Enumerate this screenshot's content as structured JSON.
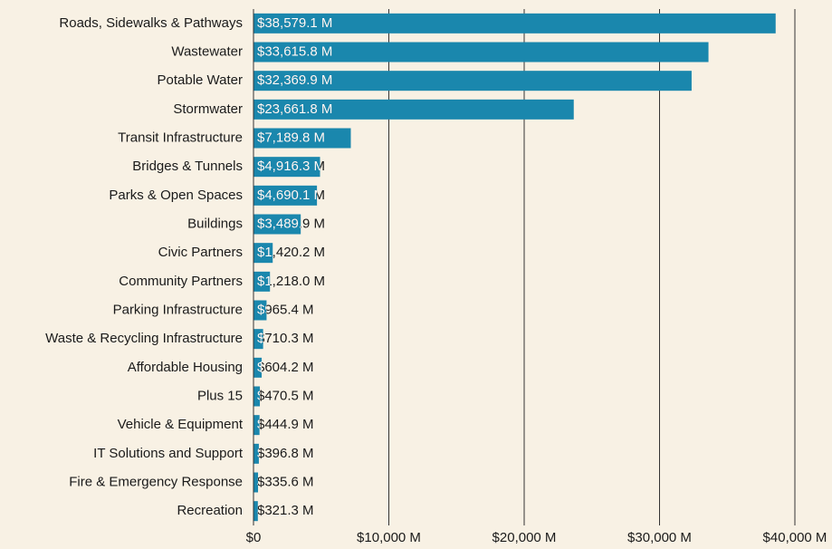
{
  "chart_data": {
    "type": "bar",
    "orientation": "horizontal",
    "categories": [
      "Roads, Sidewalks & Pathways",
      "Wastewater",
      "Potable Water",
      "Stormwater",
      "Transit Infrastructure",
      "Bridges & Tunnels",
      "Parks & Open Spaces",
      "Buildings",
      "Civic Partners",
      "Community Partners",
      "Parking Infrastructure",
      "Waste & Recycling Infrastructure",
      "Affordable Housing",
      "Plus 15",
      "Vehicle & Equipment",
      "IT Solutions and Support",
      "Fire & Emergency Response",
      "Recreation"
    ],
    "values": [
      38579.1,
      33615.8,
      32369.9,
      23661.8,
      7189.8,
      4916.3,
      4690.1,
      3489.9,
      1420.2,
      1218.0,
      965.4,
      710.3,
      604.2,
      470.5,
      444.9,
      396.8,
      335.6,
      321.3
    ],
    "value_labels": [
      "$38,579.1 M",
      "$33,615.8 M",
      "$32,369.9 M",
      "$23,661.8 M",
      "$7,189.8 M",
      "$4,916.3 M",
      "$4,690.1 M",
      "$3,489.9 M",
      "$1,420.2 M",
      "$1,218.0 M",
      "$965.4 M",
      "$710.3 M",
      "$604.2 M",
      "$470.5 M",
      "$444.9 M",
      "$396.8 M",
      "$335.6 M",
      "$321.3 M"
    ],
    "color": "#1a87ad",
    "xlim": [
      0,
      40000
    ],
    "xticks": [
      {
        "value": 0,
        "label": "$0"
      },
      {
        "value": 10000,
        "label": "$10,000 M"
      },
      {
        "value": 20000,
        "label": "$20,000 M"
      },
      {
        "value": 30000,
        "label": "$30,000 M"
      },
      {
        "value": 40000,
        "label": "$40,000 M"
      }
    ],
    "grid": true
  }
}
